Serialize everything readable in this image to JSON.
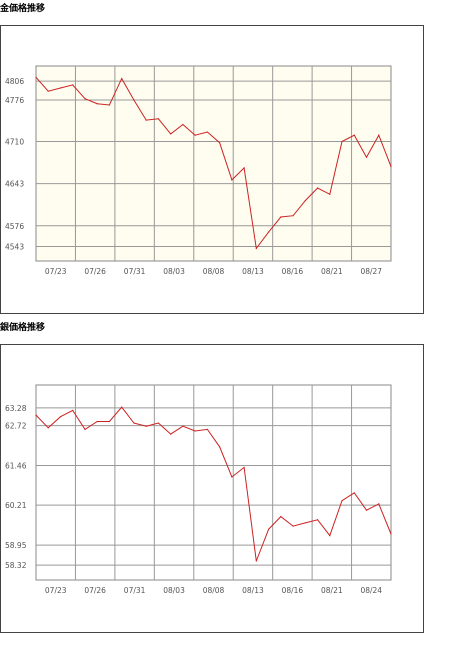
{
  "gold_title": "金価格推移",
  "silver_title": "銀価格推移",
  "chart_data": [
    {
      "type": "line",
      "title": "金価格推移",
      "xlabel": "",
      "ylabel": "",
      "grid": true,
      "background": "#fffdf0",
      "line_color": "#cc2222",
      "x_tick_labels": [
        "07/23",
        "07/26",
        "07/31",
        "08/03",
        "08/08",
        "08/13",
        "08/16",
        "08/21",
        "08/27"
      ],
      "y_tick_labels": [
        "4806",
        "4776",
        "4710",
        "4643",
        "4576",
        "4543"
      ],
      "y_ticks": [
        4806,
        4776,
        4710,
        4643,
        4576,
        4543
      ],
      "ylim": [
        4520,
        4830
      ],
      "values": [
        4812,
        4790,
        4795,
        4800,
        4778,
        4770,
        4768,
        4810,
        4776,
        4744,
        4746,
        4722,
        4737,
        4720,
        4725,
        4708,
        4649,
        4668,
        4540,
        4566,
        4590,
        4592,
        4616,
        4636,
        4626,
        4710,
        4720,
        4685,
        4720,
        4670
      ]
    },
    {
      "type": "line",
      "title": "銀価格推移",
      "xlabel": "",
      "ylabel": "",
      "grid": true,
      "background": "#ffffff",
      "line_color": "#cc2222",
      "x_tick_labels": [
        "07/23",
        "07/26",
        "07/31",
        "08/03",
        "08/08",
        "08/13",
        "08/16",
        "08/21",
        "08/24"
      ],
      "y_tick_labels": [
        "63.28",
        "62.72",
        "61.46",
        "60.21",
        "58.95",
        "58.32"
      ],
      "y_ticks": [
        63.28,
        62.72,
        61.46,
        60.21,
        58.95,
        58.32
      ],
      "ylim": [
        57.85,
        64.0
      ],
      "values": [
        63.05,
        62.65,
        63.0,
        63.2,
        62.6,
        62.85,
        62.85,
        63.3,
        62.8,
        62.7,
        62.8,
        62.45,
        62.7,
        62.55,
        62.6,
        62.05,
        61.1,
        61.4,
        58.45,
        59.45,
        59.85,
        59.55,
        59.65,
        59.75,
        59.25,
        60.35,
        60.6,
        60.05,
        60.25,
        59.3
      ]
    }
  ]
}
